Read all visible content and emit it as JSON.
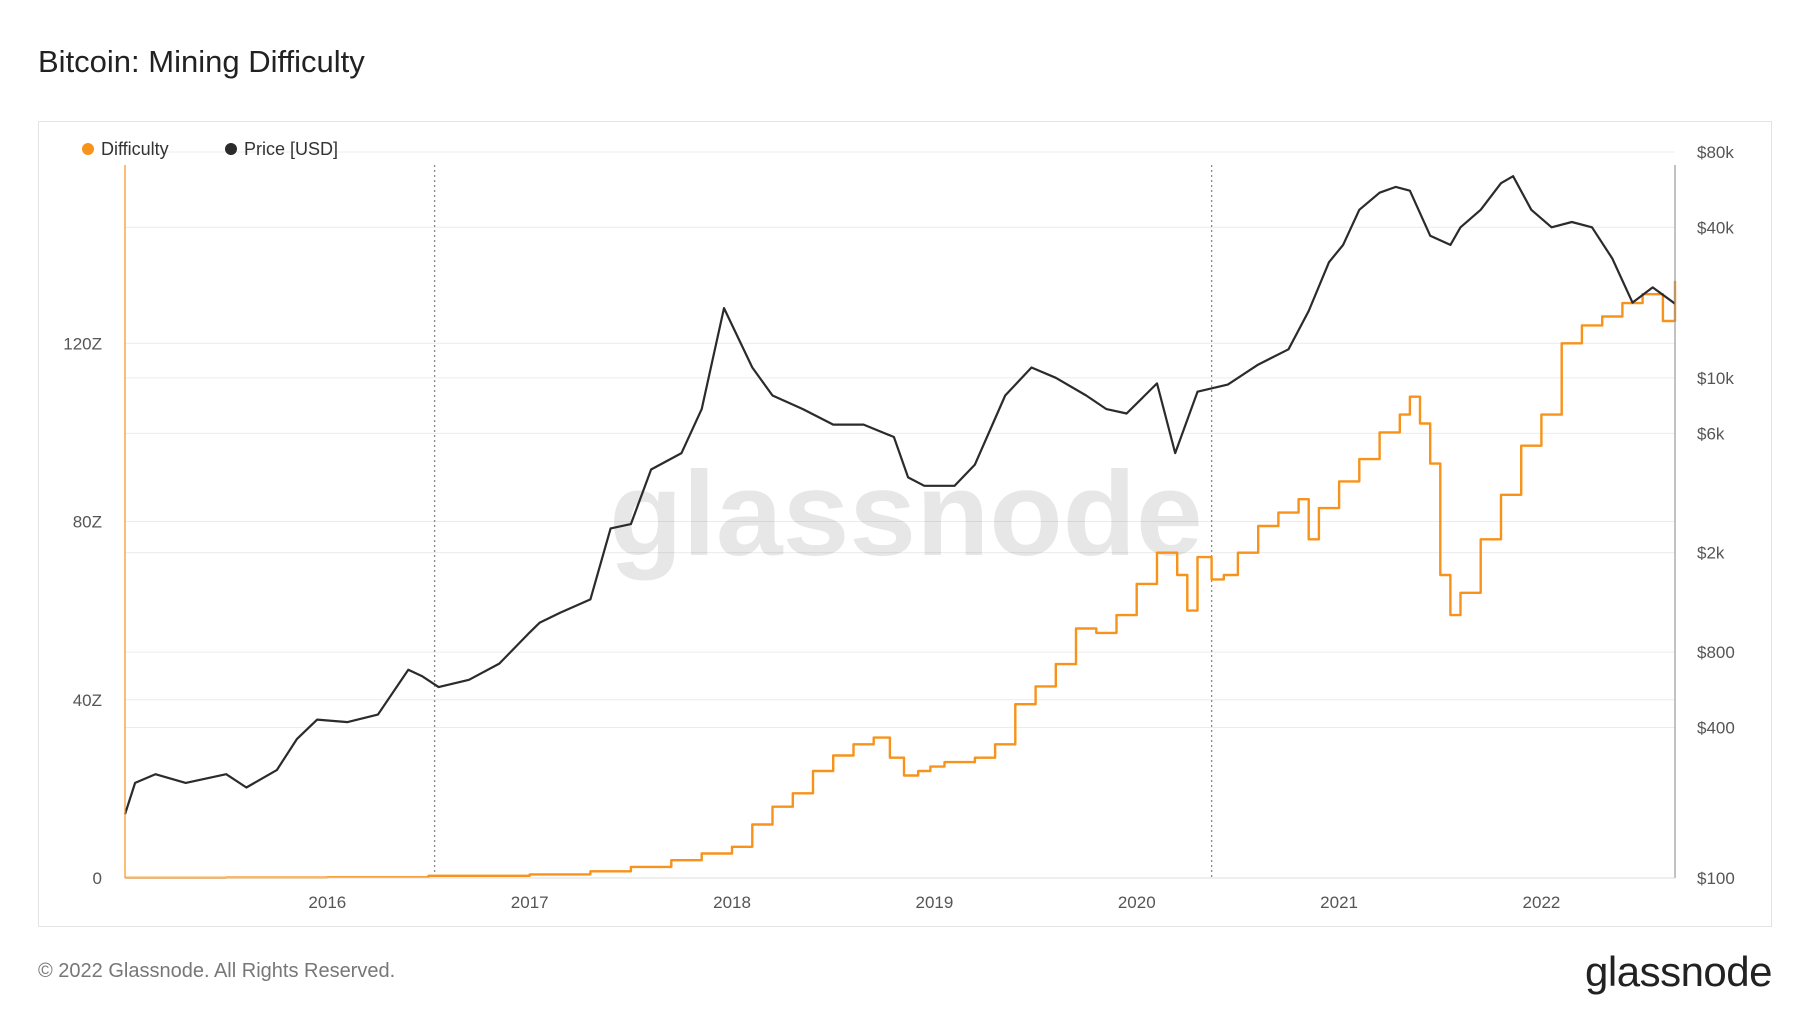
{
  "page": {
    "title": "Bitcoin: Mining Difficulty",
    "footer": "© 2022 Glassnode. All Rights Reserved.",
    "brand": "glassnode",
    "watermark": "glassnode"
  },
  "colors": {
    "difficulty": "#f7931a",
    "price": "#2b2b2b",
    "grid": "#ececec",
    "marker_line": "#8a8a8a"
  },
  "chart_data": {
    "type": "line",
    "title": "Bitcoin: Mining Difficulty",
    "legend_placement": "top-left",
    "grid": true,
    "x_ticks": [
      "2016",
      "2017",
      "2018",
      "2019",
      "2020",
      "2021",
      "2022"
    ],
    "xlim": [
      2015.0,
      2022.66
    ],
    "markers": [
      2016.53,
      2020.37
    ],
    "y_left": {
      "ticks": [
        "0",
        "40Z",
        "80Z",
        "120Z"
      ],
      "tick_values": [
        0,
        40,
        80,
        120
      ],
      "lim": [
        0,
        160
      ],
      "unit": "Z"
    },
    "y_right": {
      "scale": "log",
      "ticks": [
        "$100",
        "$400",
        "$800",
        "$2k",
        "$6k",
        "$10k",
        "$40k",
        "$80k"
      ],
      "tick_values": [
        100,
        400,
        800,
        2000,
        6000,
        10000,
        40000,
        80000
      ],
      "lim": [
        100,
        80000
      ]
    },
    "series": [
      {
        "name": "Difficulty",
        "axis": "left",
        "step": true,
        "x": [
          2015.0,
          2015.5,
          2016.0,
          2016.5,
          2017.0,
          2017.3,
          2017.5,
          2017.7,
          2017.85,
          2018.0,
          2018.1,
          2018.2,
          2018.3,
          2018.4,
          2018.5,
          2018.6,
          2018.7,
          2018.78,
          2018.85,
          2018.92,
          2018.98,
          2019.05,
          2019.2,
          2019.3,
          2019.4,
          2019.5,
          2019.6,
          2019.7,
          2019.8,
          2019.9,
          2020.0,
          2020.1,
          2020.2,
          2020.25,
          2020.3,
          2020.37,
          2020.43,
          2020.5,
          2020.6,
          2020.7,
          2020.8,
          2020.85,
          2020.9,
          2021.0,
          2021.1,
          2021.2,
          2021.3,
          2021.35,
          2021.4,
          2021.45,
          2021.5,
          2021.55,
          2021.6,
          2021.7,
          2021.8,
          2021.9,
          2022.0,
          2022.1,
          2022.2,
          2022.3,
          2022.4,
          2022.5,
          2022.6,
          2022.66
        ],
        "values": [
          0.05,
          0.1,
          0.15,
          0.5,
          0.8,
          1.5,
          2.5,
          4,
          5.5,
          7,
          12,
          16,
          19,
          24,
          27.5,
          30,
          31.5,
          27,
          23,
          24,
          25,
          26,
          27,
          30,
          39,
          43,
          48,
          56,
          55,
          59,
          66,
          73,
          68,
          60,
          72,
          67,
          68,
          73,
          79,
          82,
          85,
          76,
          83,
          89,
          94,
          100,
          104,
          108,
          102,
          93,
          68,
          59,
          64,
          76,
          86,
          97,
          104,
          120,
          124,
          126,
          129,
          131,
          125,
          134
        ]
      },
      {
        "name": "Price [USD]",
        "axis": "right",
        "x": [
          2015.0,
          2015.05,
          2015.15,
          2015.3,
          2015.5,
          2015.6,
          2015.75,
          2015.85,
          2015.95,
          2016.1,
          2016.25,
          2016.4,
          2016.47,
          2016.55,
          2016.7,
          2016.85,
          2017.0,
          2017.05,
          2017.15,
          2017.3,
          2017.4,
          2017.5,
          2017.6,
          2017.75,
          2017.85,
          2017.96,
          2018.1,
          2018.2,
          2018.35,
          2018.5,
          2018.65,
          2018.8,
          2018.87,
          2018.95,
          2019.1,
          2019.2,
          2019.35,
          2019.48,
          2019.6,
          2019.75,
          2019.85,
          2019.95,
          2020.1,
          2020.19,
          2020.3,
          2020.45,
          2020.6,
          2020.75,
          2020.85,
          2020.95,
          2021.02,
          2021.1,
          2021.2,
          2021.28,
          2021.35,
          2021.45,
          2021.55,
          2021.6,
          2021.7,
          2021.8,
          2021.86,
          2021.95,
          2022.05,
          2022.15,
          2022.25,
          2022.35,
          2022.45,
          2022.55,
          2022.66
        ],
        "values": [
          180,
          240,
          260,
          240,
          260,
          230,
          270,
          360,
          430,
          420,
          450,
          680,
          640,
          580,
          620,
          720,
          960,
          1050,
          1150,
          1300,
          2500,
          2600,
          4300,
          5000,
          7500,
          19000,
          11000,
          8500,
          7500,
          6500,
          6500,
          5800,
          4000,
          3700,
          3700,
          4500,
          8500,
          11000,
          10000,
          8500,
          7500,
          7200,
          9500,
          5000,
          8800,
          9400,
          11300,
          13000,
          18500,
          29000,
          34000,
          47000,
          55000,
          58000,
          56000,
          37000,
          34000,
          40000,
          47000,
          60000,
          64000,
          47000,
          40000,
          42000,
          40000,
          30000,
          20000,
          23000,
          19800
        ]
      }
    ]
  }
}
